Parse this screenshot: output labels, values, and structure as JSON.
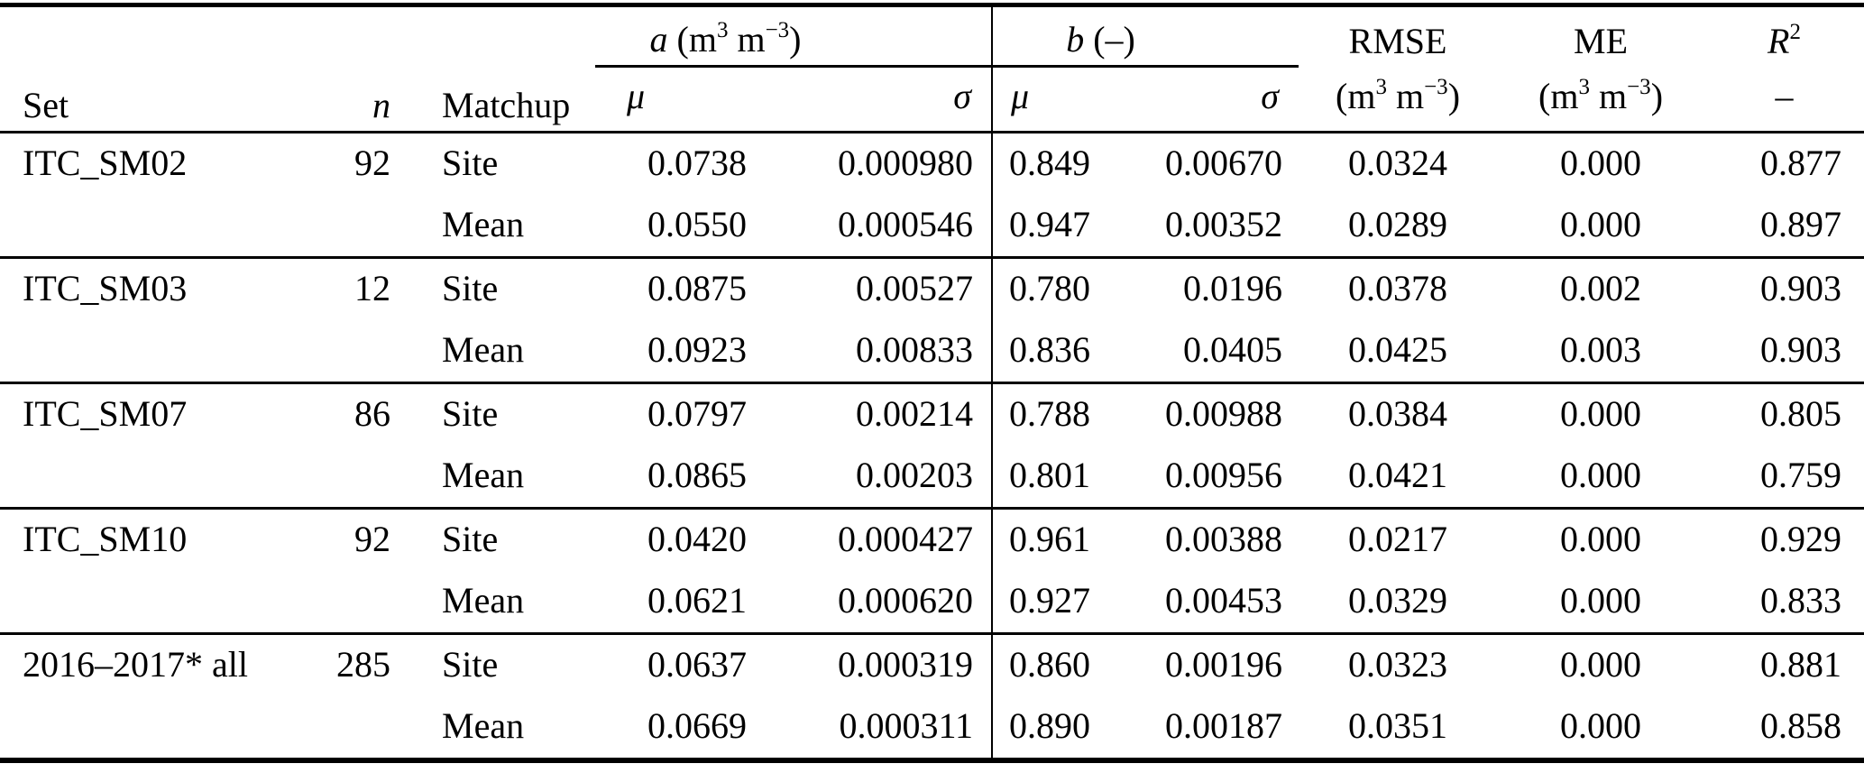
{
  "table": {
    "header": {
      "set": "Set",
      "n": "n",
      "matchup": "Matchup",
      "group_a": {
        "symbol": "a",
        "unit_open": " (m",
        "unit_sup1": "3",
        "unit_mid": " m",
        "unit_sup2": "−3",
        "unit_close": ")"
      },
      "group_b": {
        "symbol": "b",
        "unit": " (–)"
      },
      "sub": {
        "a_mu": "μ",
        "a_sigma": "σ",
        "b_mu": "μ",
        "b_sigma": "σ"
      },
      "rmse": {
        "label": "RMSE",
        "unit_open": "(m",
        "unit_sup1": "3",
        "unit_mid": " m",
        "unit_sup2": "−3",
        "unit_close": ")"
      },
      "me": {
        "label": "ME",
        "unit_open": "(m",
        "unit_sup1": "3",
        "unit_mid": " m",
        "unit_sup2": "−3",
        "unit_close": ")"
      },
      "r2": {
        "base": "R",
        "sup": "2",
        "unit": "–"
      }
    },
    "rows": [
      {
        "set": "ITC_SM02",
        "n": "92",
        "matchup": "Site",
        "a_mu": "0.0738",
        "a_sigma": "0.000980",
        "b_mu": "0.849",
        "b_sigma": "0.00670",
        "rmse": "0.0324",
        "me": "0.000",
        "r2": "0.877"
      },
      {
        "set": "",
        "n": "",
        "matchup": "Mean",
        "a_mu": "0.0550",
        "a_sigma": "0.000546",
        "b_mu": "0.947",
        "b_sigma": "0.00352",
        "rmse": "0.0289",
        "me": "0.000",
        "r2": "0.897"
      },
      {
        "set": "ITC_SM03",
        "n": "12",
        "matchup": "Site",
        "a_mu": "0.0875",
        "a_sigma": "0.00527",
        "b_mu": "0.780",
        "b_sigma": "0.0196",
        "rmse": "0.0378",
        "me": "0.002",
        "r2": "0.903"
      },
      {
        "set": "",
        "n": "",
        "matchup": "Mean",
        "a_mu": "0.0923",
        "a_sigma": "0.00833",
        "b_mu": "0.836",
        "b_sigma": "0.0405",
        "rmse": "0.0425",
        "me": "0.003",
        "r2": "0.903"
      },
      {
        "set": "ITC_SM07",
        "n": "86",
        "matchup": "Site",
        "a_mu": "0.0797",
        "a_sigma": "0.00214",
        "b_mu": "0.788",
        "b_sigma": "0.00988",
        "rmse": "0.0384",
        "me": "0.000",
        "r2": "0.805"
      },
      {
        "set": "",
        "n": "",
        "matchup": "Mean",
        "a_mu": "0.0865",
        "a_sigma": "0.00203",
        "b_mu": "0.801",
        "b_sigma": "0.00956",
        "rmse": "0.0421",
        "me": "0.000",
        "r2": "0.759"
      },
      {
        "set": "ITC_SM10",
        "n": "92",
        "matchup": "Site",
        "a_mu": "0.0420",
        "a_sigma": "0.000427",
        "b_mu": "0.961",
        "b_sigma": "0.00388",
        "rmse": "0.0217",
        "me": "0.000",
        "r2": "0.929"
      },
      {
        "set": "",
        "n": "",
        "matchup": "Mean",
        "a_mu": "0.0621",
        "a_sigma": "0.000620",
        "b_mu": "0.927",
        "b_sigma": "0.00453",
        "rmse": "0.0329",
        "me": "0.000",
        "r2": "0.833"
      },
      {
        "set": "2016–2017* all",
        "n": "285",
        "matchup": "Site",
        "a_mu": "0.0637",
        "a_sigma": "0.000319",
        "b_mu": "0.860",
        "b_sigma": "0.00196",
        "rmse": "0.0323",
        "me": "0.000",
        "r2": "0.881"
      },
      {
        "set": "",
        "n": "",
        "matchup": "Mean",
        "a_mu": "0.0669",
        "a_sigma": "0.000311",
        "b_mu": "0.890",
        "b_sigma": "0.00187",
        "rmse": "0.0351",
        "me": "0.000",
        "r2": "0.858"
      }
    ]
  }
}
